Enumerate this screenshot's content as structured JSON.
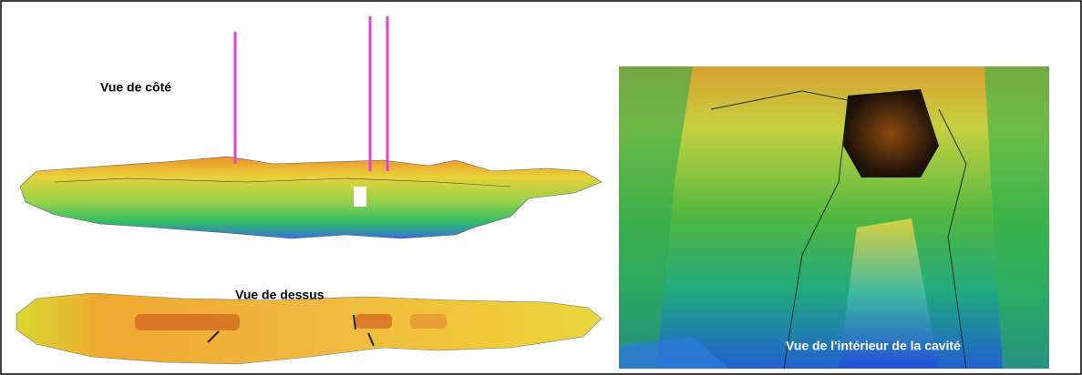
{
  "labels": {
    "side_view": "Vue de côté",
    "top_view": "Vue de dessus",
    "interior_view": "Vue de l'intérieur de la cavité"
  }
}
